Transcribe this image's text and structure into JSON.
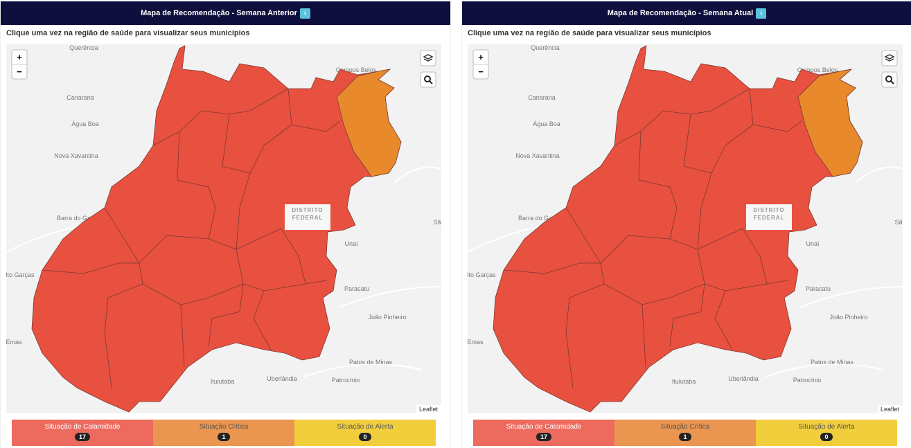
{
  "panels": [
    {
      "title": "Mapa de Recomendação - Semana Anterior",
      "instruction": "Clique uma vez na região de saúde para visualizar seus municípios",
      "legend": [
        {
          "label": "Situação de Calamidade",
          "count": 17
        },
        {
          "label": "Situação Crítica",
          "count": 1
        },
        {
          "label": "Situação de Alerta",
          "count": 0
        }
      ]
    },
    {
      "title": "Mapa de Recomendação - Semana Atual",
      "instruction": "Clique uma vez na região de saúde para visualizar seus municípios",
      "legend": [
        {
          "label": "Situação de Calamidade",
          "count": 17
        },
        {
          "label": "Situação Crítica",
          "count": 1
        },
        {
          "label": "Situação de Alerta",
          "count": 0
        }
      ]
    }
  ],
  "map": {
    "labels": [
      "Querência",
      "Campos Belos",
      "Canarana",
      "Água Boa",
      "Nova Xavantina",
      "Barra do Garças",
      "Sã",
      "Unaí",
      "lto Garças",
      "Paracatu",
      "João Pinheiro",
      "Emas",
      "Patos de Minas",
      "Uberlândia",
      "Ituiutaba",
      "Patrocínio"
    ],
    "district": [
      "DISTRITO",
      "FEDERAL"
    ],
    "attribution": "Leaflet",
    "zoom_in": "+",
    "zoom_out": "−",
    "info": "i"
  }
}
